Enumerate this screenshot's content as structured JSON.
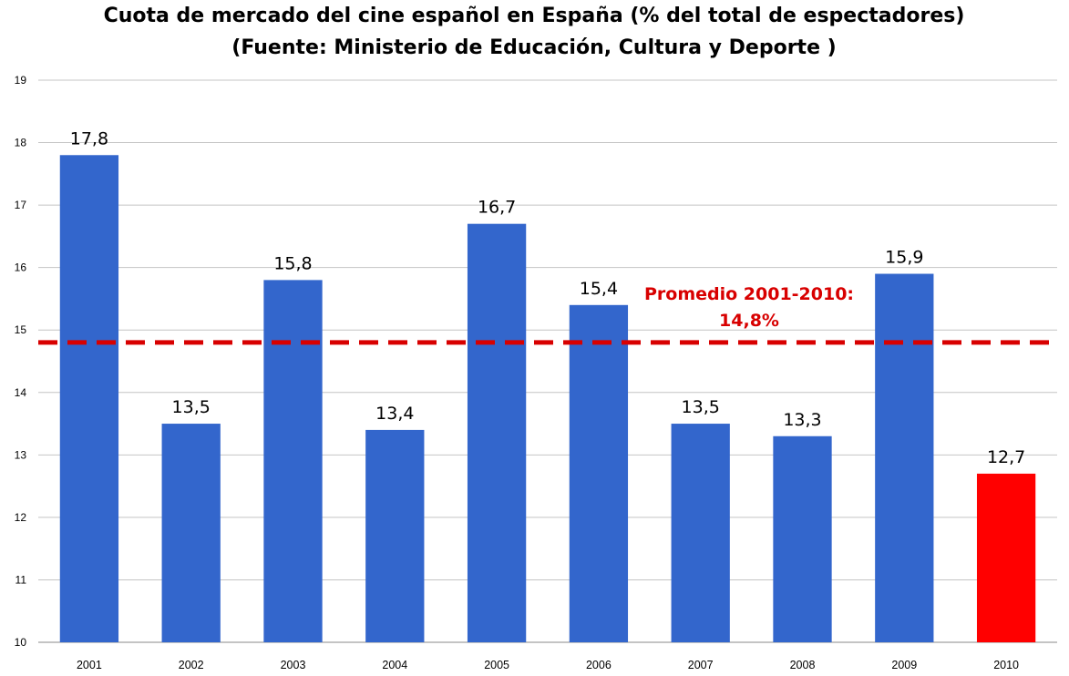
{
  "chart_data": {
    "type": "bar",
    "title": "Cuota de mercado del cine español en España (% del total de espectadores)",
    "subtitle": "(Fuente: Ministerio de Educación, Cultura y Deporte )",
    "xlabel": "",
    "ylabel": "",
    "categories": [
      "2001",
      "2002",
      "2003",
      "2004",
      "2005",
      "2006",
      "2007",
      "2008",
      "2009",
      "2010"
    ],
    "values": [
      17.8,
      13.5,
      15.8,
      13.4,
      16.7,
      15.4,
      13.5,
      13.3,
      15.9,
      12.7
    ],
    "value_labels": [
      "17,8",
      "13,5",
      "15,8",
      "13,4",
      "16,7",
      "15,4",
      "13,5",
      "13,3",
      "15,9",
      "12,7"
    ],
    "ylim": [
      10,
      19
    ],
    "yticks": [
      10,
      11,
      12,
      13,
      14,
      15,
      16,
      17,
      18,
      19
    ],
    "grid": true,
    "legend": "none",
    "bar_color": "#3366CC",
    "highlight_color": "#FF0000",
    "highlight_categories": [
      "2010"
    ],
    "average_line": {
      "value": 14.8,
      "label_line1": "Promedio 2001-2010:",
      "label_line2": "14,8%",
      "color": "#D80000",
      "style": "dashed"
    }
  }
}
